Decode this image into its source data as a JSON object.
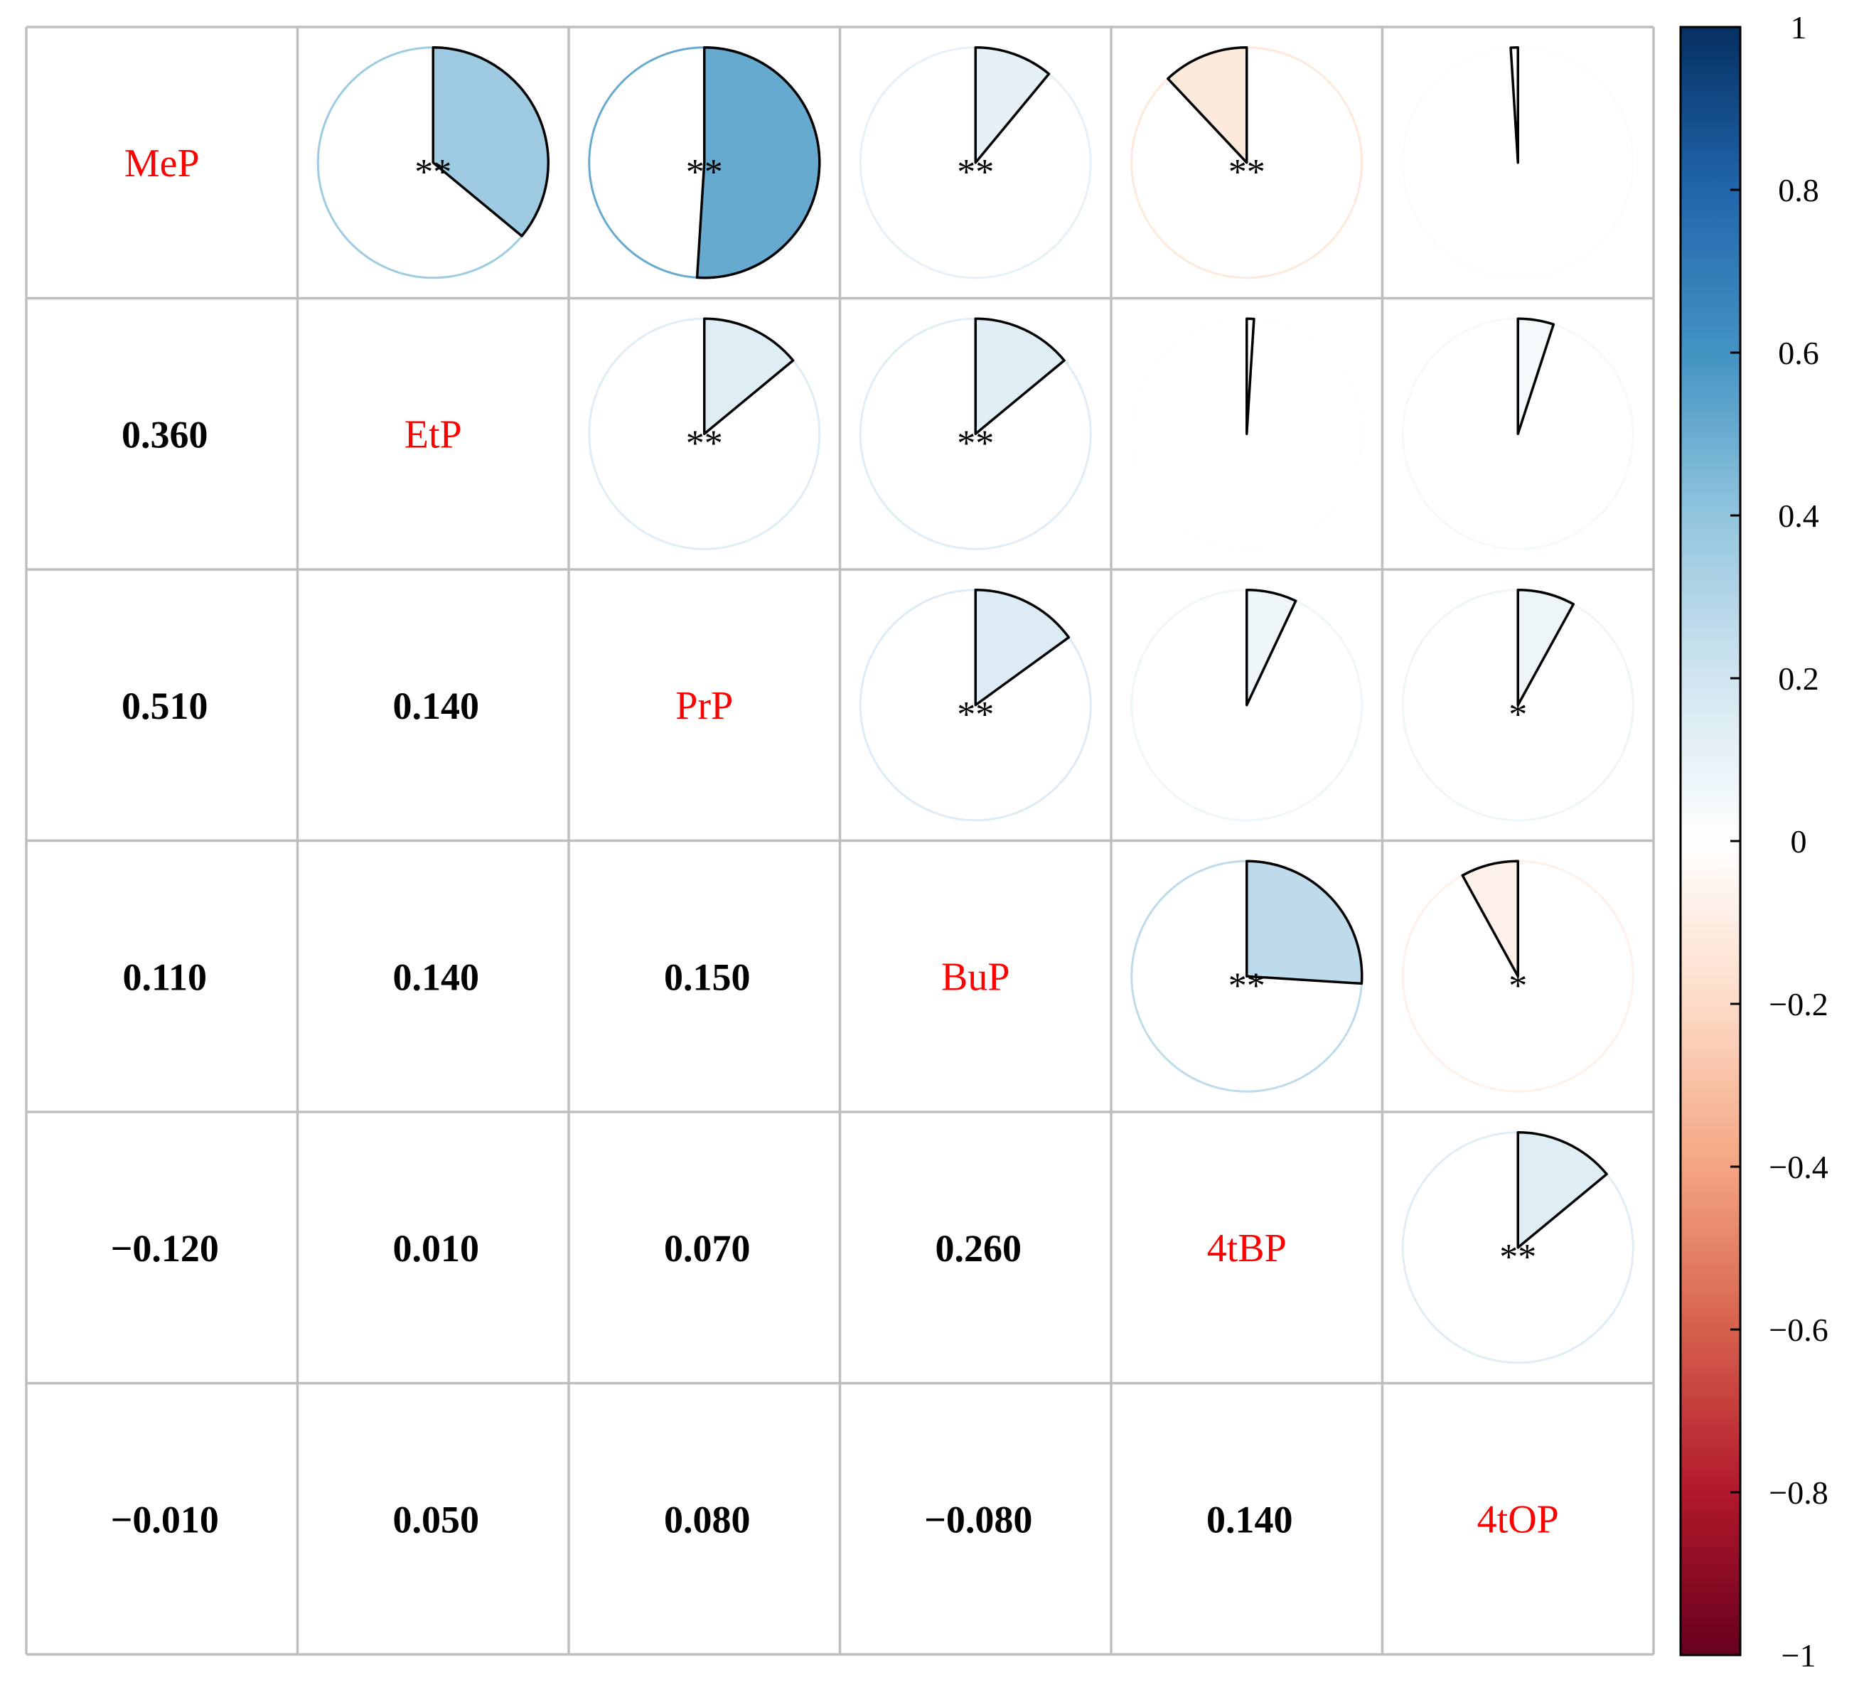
{
  "chart_data": {
    "type": "heatmap",
    "subtype": "correlation-matrix-pie",
    "variables": [
      "MeP",
      "EtP",
      "PrP",
      "BuP",
      "4tBP",
      "4tOP"
    ],
    "lower_labels": [
      {
        "row": 1,
        "col": 0,
        "text": "0.360",
        "value": 0.36
      },
      {
        "row": 2,
        "col": 0,
        "text": "0.510",
        "value": 0.51
      },
      {
        "row": 2,
        "col": 1,
        "text": "0.140",
        "value": 0.14
      },
      {
        "row": 3,
        "col": 0,
        "text": "0.110",
        "value": 0.11
      },
      {
        "row": 3,
        "col": 1,
        "text": "0.140",
        "value": 0.14
      },
      {
        "row": 3,
        "col": 2,
        "text": "0.150",
        "value": 0.15
      },
      {
        "row": 4,
        "col": 0,
        "text": "−0.120",
        "value": -0.12
      },
      {
        "row": 4,
        "col": 1,
        "text": "0.010",
        "value": 0.01
      },
      {
        "row": 4,
        "col": 2,
        "text": "0.070",
        "value": 0.07
      },
      {
        "row": 4,
        "col": 3,
        "text": "0.260",
        "value": 0.26
      },
      {
        "row": 5,
        "col": 0,
        "text": "−0.010",
        "value": -0.01
      },
      {
        "row": 5,
        "col": 1,
        "text": "0.050",
        "value": 0.05
      },
      {
        "row": 5,
        "col": 2,
        "text": "0.080",
        "value": 0.08
      },
      {
        "row": 5,
        "col": 3,
        "text": "−0.080",
        "value": -0.08
      },
      {
        "row": 5,
        "col": 4,
        "text": "0.140",
        "value": 0.14
      }
    ],
    "upper_pies": [
      {
        "row": 0,
        "col": 1,
        "value": 0.36,
        "sig": "**"
      },
      {
        "row": 0,
        "col": 2,
        "value": 0.51,
        "sig": "**"
      },
      {
        "row": 0,
        "col": 3,
        "value": 0.11,
        "sig": "**"
      },
      {
        "row": 0,
        "col": 4,
        "value": -0.12,
        "sig": "**"
      },
      {
        "row": 0,
        "col": 5,
        "value": -0.01,
        "sig": ""
      },
      {
        "row": 1,
        "col": 2,
        "value": 0.14,
        "sig": "**"
      },
      {
        "row": 1,
        "col": 3,
        "value": 0.14,
        "sig": "**"
      },
      {
        "row": 1,
        "col": 4,
        "value": 0.01,
        "sig": ""
      },
      {
        "row": 1,
        "col": 5,
        "value": 0.05,
        "sig": ""
      },
      {
        "row": 2,
        "col": 3,
        "value": 0.15,
        "sig": "**"
      },
      {
        "row": 2,
        "col": 4,
        "value": 0.07,
        "sig": ""
      },
      {
        "row": 2,
        "col": 5,
        "value": 0.08,
        "sig": "*"
      },
      {
        "row": 3,
        "col": 4,
        "value": 0.26,
        "sig": "**"
      },
      {
        "row": 3,
        "col": 5,
        "value": -0.08,
        "sig": "*"
      },
      {
        "row": 4,
        "col": 5,
        "value": 0.14,
        "sig": "**"
      }
    ],
    "colorbar": {
      "range": [
        -1,
        1
      ],
      "tick_values": [
        1,
        0.8,
        0.6,
        0.4,
        0.2,
        0,
        -0.2,
        -0.4,
        -0.6,
        -0.8,
        -1
      ],
      "tick_labels": [
        "1",
        "0.8",
        "0.6",
        "0.4",
        "0.2",
        "0",
        "−0.2",
        "−0.4",
        "−0.6",
        "−0.8",
        "−1"
      ],
      "colors": [
        "#67001F",
        "#B2182B",
        "#D6604D",
        "#F4A582",
        "#FDDBC7",
        "#FFFFFF",
        "#D1E5F0",
        "#92C5DE",
        "#4393C3",
        "#2166AC",
        "#053061"
      ]
    },
    "styles": {
      "diagonal_label_color": "#FF0000",
      "number_color": "#000000",
      "grid_color": "#BEBEBE"
    }
  }
}
